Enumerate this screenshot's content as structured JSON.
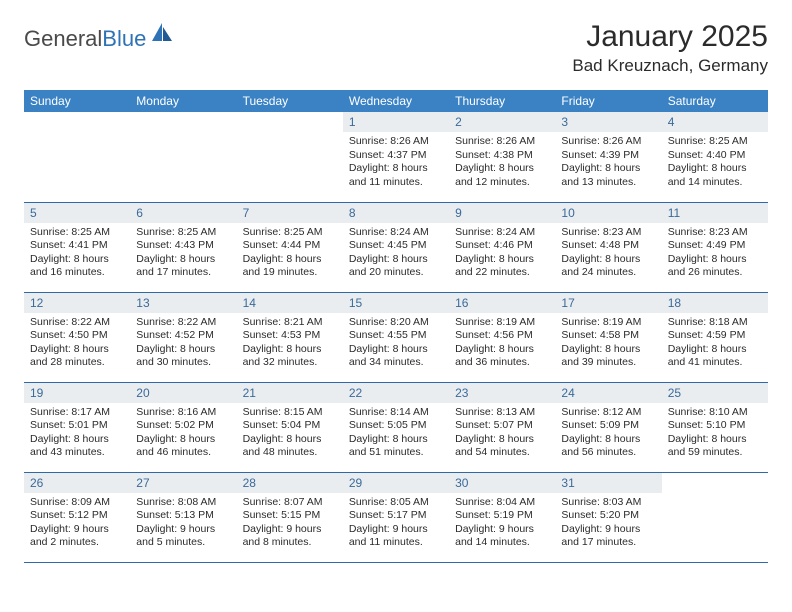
{
  "logo": {
    "text1": "General",
    "text2": "Blue"
  },
  "title": "January 2025",
  "subtitle": "Bad Kreuznach, Germany",
  "colors": {
    "header_bg": "#3a82c4",
    "header_fg": "#ffffff",
    "daynum_bg": "#e9edf0",
    "daynum_fg": "#3a6a9a",
    "row_border": "#2f6aa8",
    "logo_blue": "#2f73b6"
  },
  "weekdays": [
    "Sunday",
    "Monday",
    "Tuesday",
    "Wednesday",
    "Thursday",
    "Friday",
    "Saturday"
  ],
  "weeks": [
    [
      null,
      null,
      null,
      {
        "n": "1",
        "sr": "8:26 AM",
        "ss": "4:37 PM",
        "dl": "8 hours and 11 minutes."
      },
      {
        "n": "2",
        "sr": "8:26 AM",
        "ss": "4:38 PM",
        "dl": "8 hours and 12 minutes."
      },
      {
        "n": "3",
        "sr": "8:26 AM",
        "ss": "4:39 PM",
        "dl": "8 hours and 13 minutes."
      },
      {
        "n": "4",
        "sr": "8:25 AM",
        "ss": "4:40 PM",
        "dl": "8 hours and 14 minutes."
      }
    ],
    [
      {
        "n": "5",
        "sr": "8:25 AM",
        "ss": "4:41 PM",
        "dl": "8 hours and 16 minutes."
      },
      {
        "n": "6",
        "sr": "8:25 AM",
        "ss": "4:43 PM",
        "dl": "8 hours and 17 minutes."
      },
      {
        "n": "7",
        "sr": "8:25 AM",
        "ss": "4:44 PM",
        "dl": "8 hours and 19 minutes."
      },
      {
        "n": "8",
        "sr": "8:24 AM",
        "ss": "4:45 PM",
        "dl": "8 hours and 20 minutes."
      },
      {
        "n": "9",
        "sr": "8:24 AM",
        "ss": "4:46 PM",
        "dl": "8 hours and 22 minutes."
      },
      {
        "n": "10",
        "sr": "8:23 AM",
        "ss": "4:48 PM",
        "dl": "8 hours and 24 minutes."
      },
      {
        "n": "11",
        "sr": "8:23 AM",
        "ss": "4:49 PM",
        "dl": "8 hours and 26 minutes."
      }
    ],
    [
      {
        "n": "12",
        "sr": "8:22 AM",
        "ss": "4:50 PM",
        "dl": "8 hours and 28 minutes."
      },
      {
        "n": "13",
        "sr": "8:22 AM",
        "ss": "4:52 PM",
        "dl": "8 hours and 30 minutes."
      },
      {
        "n": "14",
        "sr": "8:21 AM",
        "ss": "4:53 PM",
        "dl": "8 hours and 32 minutes."
      },
      {
        "n": "15",
        "sr": "8:20 AM",
        "ss": "4:55 PM",
        "dl": "8 hours and 34 minutes."
      },
      {
        "n": "16",
        "sr": "8:19 AM",
        "ss": "4:56 PM",
        "dl": "8 hours and 36 minutes."
      },
      {
        "n": "17",
        "sr": "8:19 AM",
        "ss": "4:58 PM",
        "dl": "8 hours and 39 minutes."
      },
      {
        "n": "18",
        "sr": "8:18 AM",
        "ss": "4:59 PM",
        "dl": "8 hours and 41 minutes."
      }
    ],
    [
      {
        "n": "19",
        "sr": "8:17 AM",
        "ss": "5:01 PM",
        "dl": "8 hours and 43 minutes."
      },
      {
        "n": "20",
        "sr": "8:16 AM",
        "ss": "5:02 PM",
        "dl": "8 hours and 46 minutes."
      },
      {
        "n": "21",
        "sr": "8:15 AM",
        "ss": "5:04 PM",
        "dl": "8 hours and 48 minutes."
      },
      {
        "n": "22",
        "sr": "8:14 AM",
        "ss": "5:05 PM",
        "dl": "8 hours and 51 minutes."
      },
      {
        "n": "23",
        "sr": "8:13 AM",
        "ss": "5:07 PM",
        "dl": "8 hours and 54 minutes."
      },
      {
        "n": "24",
        "sr": "8:12 AM",
        "ss": "5:09 PM",
        "dl": "8 hours and 56 minutes."
      },
      {
        "n": "25",
        "sr": "8:10 AM",
        "ss": "5:10 PM",
        "dl": "8 hours and 59 minutes."
      }
    ],
    [
      {
        "n": "26",
        "sr": "8:09 AM",
        "ss": "5:12 PM",
        "dl": "9 hours and 2 minutes."
      },
      {
        "n": "27",
        "sr": "8:08 AM",
        "ss": "5:13 PM",
        "dl": "9 hours and 5 minutes."
      },
      {
        "n": "28",
        "sr": "8:07 AM",
        "ss": "5:15 PM",
        "dl": "9 hours and 8 minutes."
      },
      {
        "n": "29",
        "sr": "8:05 AM",
        "ss": "5:17 PM",
        "dl": "9 hours and 11 minutes."
      },
      {
        "n": "30",
        "sr": "8:04 AM",
        "ss": "5:19 PM",
        "dl": "9 hours and 14 minutes."
      },
      {
        "n": "31",
        "sr": "8:03 AM",
        "ss": "5:20 PM",
        "dl": "9 hours and 17 minutes."
      },
      null
    ]
  ],
  "labels": {
    "sunrise": "Sunrise:",
    "sunset": "Sunset:",
    "daylight": "Daylight:"
  }
}
